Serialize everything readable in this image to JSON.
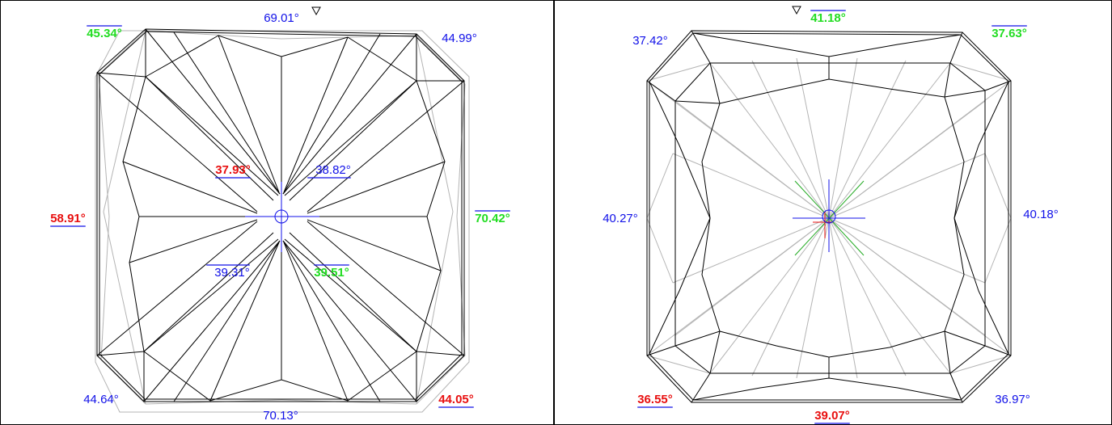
{
  "left_view": {
    "angles": [
      {
        "id": "top",
        "text": "69.01°",
        "color": "#1010e8",
        "bold": false,
        "bar": "none"
      },
      {
        "id": "top-left",
        "text": "45.34°",
        "color": "#22dd22",
        "bold": true,
        "bar": "over"
      },
      {
        "id": "top-right",
        "text": "44.99°",
        "color": "#1010e8",
        "bold": false,
        "bar": "none"
      },
      {
        "id": "left",
        "text": "58.91°",
        "color": "#e81010",
        "bold": true,
        "bar": "under"
      },
      {
        "id": "right",
        "text": "70.42°",
        "color": "#22dd22",
        "bold": true,
        "bar": "over"
      },
      {
        "id": "inner-upper-left",
        "text": "37.93°",
        "color": "#e81010",
        "bold": true,
        "bar": "under"
      },
      {
        "id": "inner-upper-right",
        "text": "38.82°",
        "color": "#1010e8",
        "bold": false,
        "bar": "under-blue"
      },
      {
        "id": "inner-lower-left",
        "text": "39.31°",
        "color": "#1010e8",
        "bold": false,
        "bar": "over-blue"
      },
      {
        "id": "inner-lower-right",
        "text": "39.51°",
        "color": "#22dd22",
        "bold": true,
        "bar": "over"
      },
      {
        "id": "bottom-left",
        "text": "44.64°",
        "color": "#1010e8",
        "bold": false,
        "bar": "none"
      },
      {
        "id": "bottom",
        "text": "70.13°",
        "color": "#1010e8",
        "bold": false,
        "bar": "none"
      },
      {
        "id": "bottom-right",
        "text": "44.05°",
        "color": "#e81010",
        "bold": true,
        "bar": "under"
      }
    ]
  },
  "right_view": {
    "angles": [
      {
        "id": "top",
        "text": "41.18°",
        "color": "#22dd22",
        "bold": true,
        "bar": "over"
      },
      {
        "id": "top-left",
        "text": "37.42°",
        "color": "#1010e8",
        "bold": false,
        "bar": "none"
      },
      {
        "id": "top-right",
        "text": "37.63°",
        "color": "#22dd22",
        "bold": true,
        "bar": "over"
      },
      {
        "id": "left",
        "text": "40.27°",
        "color": "#1010e8",
        "bold": false,
        "bar": "none"
      },
      {
        "id": "right",
        "text": "40.18°",
        "color": "#1010e8",
        "bold": false,
        "bar": "none"
      },
      {
        "id": "bottom-left",
        "text": "36.55°",
        "color": "#e81010",
        "bold": true,
        "bar": "under"
      },
      {
        "id": "bottom",
        "text": "39.07°",
        "color": "#e81010",
        "bold": true,
        "bar": "under"
      },
      {
        "id": "bottom-right",
        "text": "36.97°",
        "color": "#1010e8",
        "bold": false,
        "bar": "none"
      }
    ]
  },
  "colors": {
    "facet_edge": "#000000",
    "hidden_edge": "#b4b4b4",
    "axis_blue": "#1010e8",
    "axis_red": "#e81010",
    "axis_green": "#22aa22"
  },
  "markers": {
    "direction_marker_icon": "triangle-down-outline",
    "culet_marker_icon": "circle-crosshair"
  }
}
